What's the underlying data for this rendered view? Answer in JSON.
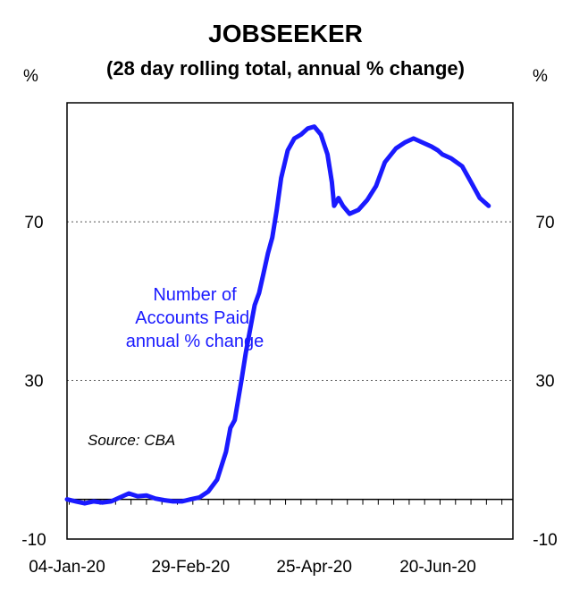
{
  "chart_data": {
    "type": "line",
    "title": "JOBSEEKER",
    "subtitle": "(28 day rolling total, annual % change)",
    "ylabel_left": "%",
    "ylabel_right": "%",
    "ylim": [
      -10,
      100
    ],
    "yticks": [
      -10,
      30,
      70
    ],
    "x_tick_labels": [
      "04-Jan-20",
      "29-Feb-20",
      "25-Apr-20",
      "20-Jun-20"
    ],
    "grid": "horizontal dotted at 30 and 70",
    "series": [
      {
        "name": "Number of Accounts Paid, annual % change",
        "color": "#1a1aff",
        "x": [
          "2020-01-04",
          "2020-01-08",
          "2020-01-12",
          "2020-01-16",
          "2020-01-20",
          "2020-01-24",
          "2020-01-28",
          "2020-02-01",
          "2020-02-05",
          "2020-02-09",
          "2020-02-13",
          "2020-02-17",
          "2020-02-21",
          "2020-02-25",
          "2020-02-29",
          "2020-03-04",
          "2020-03-08",
          "2020-03-12",
          "2020-03-16",
          "2020-03-18",
          "2020-03-20",
          "2020-03-23",
          "2020-03-25",
          "2020-03-27",
          "2020-03-29",
          "2020-03-31",
          "2020-04-02",
          "2020-04-04",
          "2020-04-06",
          "2020-04-08",
          "2020-04-10",
          "2020-04-13",
          "2020-04-16",
          "2020-04-19",
          "2020-04-22",
          "2020-04-25",
          "2020-04-28",
          "2020-05-01",
          "2020-05-03",
          "2020-05-04",
          "2020-05-06",
          "2020-05-08",
          "2020-05-11",
          "2020-05-15",
          "2020-05-19",
          "2020-05-23",
          "2020-05-27",
          "2020-06-01",
          "2020-06-05",
          "2020-06-09",
          "2020-06-13",
          "2020-06-17",
          "2020-06-20",
          "2020-06-22",
          "2020-06-26",
          "2020-07-01",
          "2020-07-05",
          "2020-07-09",
          "2020-07-13"
        ],
        "values": [
          0,
          -0.5,
          -1,
          -0.5,
          -0.8,
          -0.5,
          0.5,
          1.5,
          0.8,
          1,
          0.2,
          -0.2,
          -0.5,
          -0.5,
          0,
          0.5,
          2,
          5,
          12,
          18,
          20,
          30,
          37,
          43,
          49,
          52,
          57,
          62,
          66,
          73,
          81,
          88,
          91,
          92,
          93.5,
          94,
          92,
          87,
          80,
          74,
          76,
          74,
          72,
          73,
          75.5,
          79,
          85,
          88.5,
          90,
          91,
          90,
          89,
          88,
          87,
          86,
          84,
          80,
          76,
          74
        ]
      }
    ],
    "annotations": [
      "Number of",
      "Accounts Paid,",
      "annual % change",
      "Source: CBA"
    ]
  }
}
